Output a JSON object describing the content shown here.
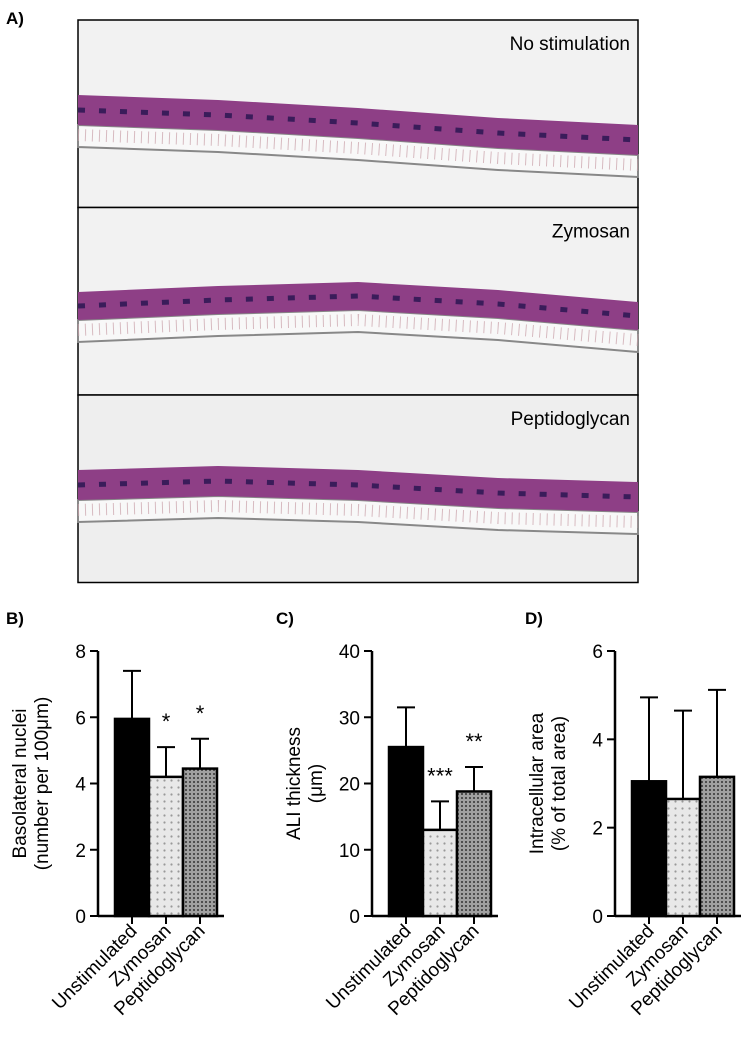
{
  "panel_a": {
    "label": "A)",
    "images": [
      "No stimulation",
      "Zymosan",
      "Peptidoglycan"
    ]
  },
  "chart_data": [
    {
      "type": "bar",
      "panel_label": "B)",
      "ylabel": [
        "Basolateral nuclei",
        "(number per 100μm)"
      ],
      "categories": [
        "Unstimulated",
        "Zymosan",
        "Peptidoglycan"
      ],
      "values": [
        5.95,
        4.2,
        4.45
      ],
      "errors": [
        1.45,
        0.9,
        0.9
      ],
      "annotations": [
        null,
        "*",
        "*"
      ],
      "colors": [
        "#000000",
        "#e8e8e8",
        "#a0a0a0"
      ],
      "ylim": [
        0,
        8
      ],
      "yticks": [
        0,
        2,
        4,
        6,
        8
      ]
    },
    {
      "type": "bar",
      "panel_label": "C)",
      "ylabel": [
        "ALI thickness",
        "(μm)"
      ],
      "categories": [
        "Unstimulated",
        "Zymosan",
        "Peptidoglycan"
      ],
      "values": [
        25.5,
        13,
        18.8
      ],
      "errors": [
        6,
        4.3,
        3.7
      ],
      "annotations": [
        null,
        "***",
        "**"
      ],
      "colors": [
        "#000000",
        "#e8e8e8",
        "#a0a0a0"
      ],
      "ylim": [
        0,
        40
      ],
      "yticks": [
        0,
        10,
        20,
        30,
        40
      ]
    },
    {
      "type": "bar",
      "panel_label": "D)",
      "ylabel": [
        "Intracellular area",
        "(% of total area)"
      ],
      "categories": [
        "Unstimulated",
        "Zymosan",
        "Peptidoglycan"
      ],
      "values": [
        3.05,
        2.65,
        3.15
      ],
      "errors": [
        1.9,
        2.0,
        1.97
      ],
      "annotations": [
        null,
        null,
        null
      ],
      "colors": [
        "#000000",
        "#e8e8e8",
        "#a0a0a0"
      ],
      "ylim": [
        0,
        6
      ],
      "yticks": [
        0,
        2,
        4,
        6
      ]
    }
  ]
}
